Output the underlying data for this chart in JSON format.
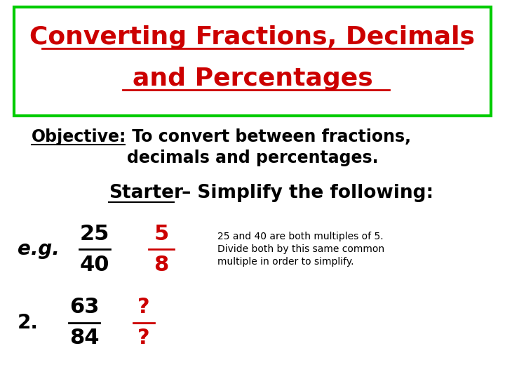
{
  "bg_color": "#ffffff",
  "title_line1": "Converting Fractions, Decimals",
  "title_line2": "and Percentages",
  "title_color": "#cc0000",
  "box_color": "#00cc00",
  "objective_label": "Objective:",
  "objective_text1": " To convert between fractions,",
  "objective_text2": "decimals and percentages.",
  "starter_label": "Starter",
  "starter_text": " – Simplify the following:",
  "eg_label": "e.g.",
  "frac1_num": "25",
  "frac1_den": "40",
  "frac1_ans_num": "5",
  "frac1_ans_den": "8",
  "note_line1": "25 and 40 are both multiples of 5.",
  "note_line2": "Divide both by this same common",
  "note_line3": "multiple in order to simplify.",
  "prob2_label": "2.",
  "frac2_num": "63",
  "frac2_den": "84",
  "frac2_ans_num": "?",
  "frac2_ans_den": "?",
  "black": "#000000",
  "red": "#cc0000",
  "green": "#00cc00"
}
